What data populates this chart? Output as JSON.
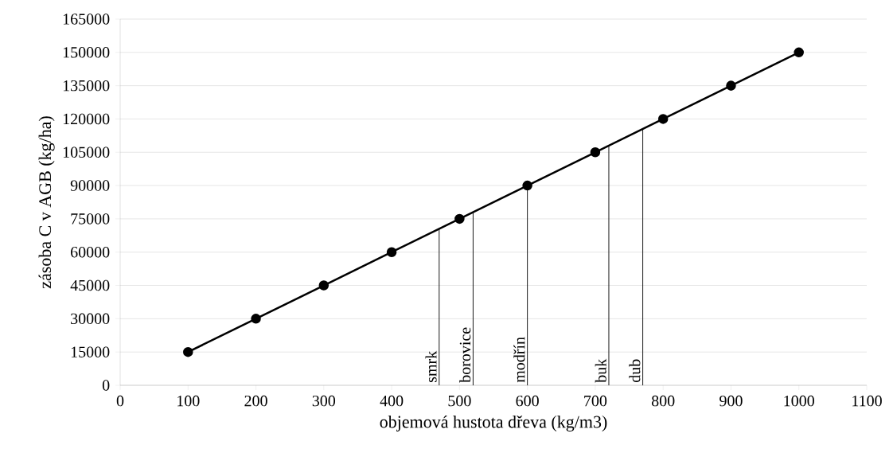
{
  "chart_data": {
    "type": "line",
    "xlabel": "objemová hustota dřeva (kg/m3)",
    "ylabel": "zásoba C v AGB (kg/ha)",
    "x": [
      100,
      200,
      300,
      400,
      500,
      600,
      700,
      800,
      900,
      1000
    ],
    "series": [
      {
        "color": "#000000",
        "values": [
          15000,
          30000,
          45000,
          60000,
          75000,
          90000,
          105000,
          120000,
          135000,
          150000
        ]
      }
    ],
    "marker": "circle",
    "line_style": "solid",
    "grid": "y",
    "xlim": [
      0,
      1100
    ],
    "xticks": [
      0,
      100,
      200,
      300,
      400,
      500,
      600,
      700,
      800,
      900,
      1000,
      1100
    ],
    "ylim": [
      0,
      165000
    ],
    "yticks": [
      0,
      15000,
      30000,
      45000,
      60000,
      75000,
      90000,
      105000,
      120000,
      135000,
      150000,
      165000
    ],
    "ref_lines": [
      {
        "axis": "x",
        "value": 470,
        "label": "smrk"
      },
      {
        "axis": "x",
        "value": 520,
        "label": "borovice"
      },
      {
        "axis": "x",
        "value": 600,
        "label": "modřín"
      },
      {
        "axis": "x",
        "value": 720,
        "label": "buk"
      },
      {
        "axis": "x",
        "value": 770,
        "label": "dub"
      }
    ]
  }
}
